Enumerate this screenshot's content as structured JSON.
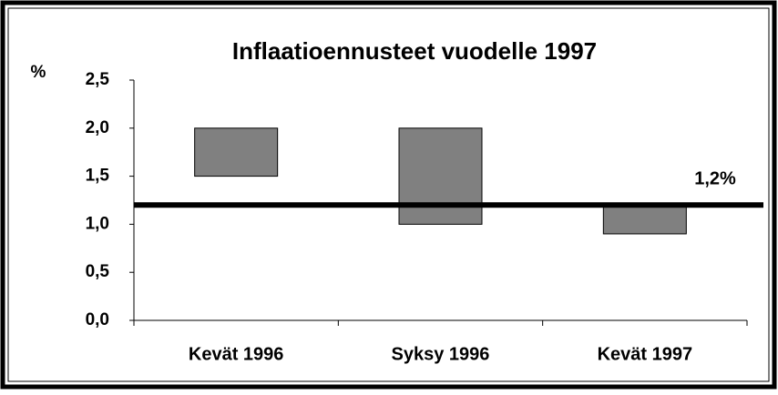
{
  "chart_data": {
    "type": "floating-bar",
    "title": "Inflaatioennusteet vuodelle 1997",
    "y_axis_label": "%",
    "categories": [
      "Kevät 1996",
      "Syksy 1996",
      "Kevät 1997"
    ],
    "low": [
      1.5,
      1.0,
      0.9
    ],
    "high": [
      2.0,
      2.0,
      1.2
    ],
    "color": "#808080",
    "reference_line": {
      "value": 1.2,
      "label": "1,2%"
    },
    "ylim": [
      0,
      2.5
    ],
    "yticks": [
      {
        "value": 0,
        "label": "0,0"
      },
      {
        "value": 0.5,
        "label": "0,5"
      },
      {
        "value": 1.0,
        "label": "1,0"
      },
      {
        "value": 1.5,
        "label": "1,5"
      },
      {
        "value": 2.0,
        "label": "2,0"
      },
      {
        "value": 2.5,
        "label": "2,5"
      }
    ],
    "grid": false
  }
}
